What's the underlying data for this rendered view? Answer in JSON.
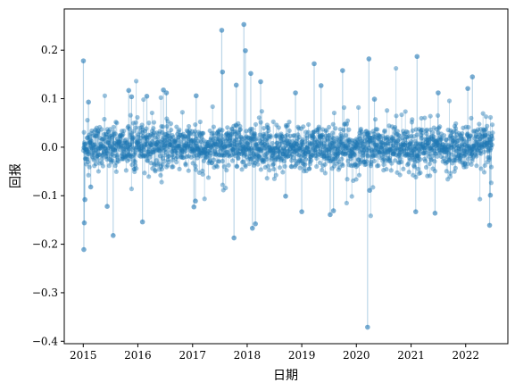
{
  "chart_data": {
    "type": "scatter",
    "style": "stem scatter (vertical lines from 0 to each point)",
    "xlabel": "日期",
    "ylabel": "回报",
    "xlim": [
      "2014-08-27",
      "2022-10-10"
    ],
    "ylim": [
      -0.405,
      0.285
    ],
    "x_ticks": [
      "2015",
      "2016",
      "2017",
      "2018",
      "2019",
      "2020",
      "2021",
      "2022"
    ],
    "y_ticks": [
      "−0.4",
      "−0.3",
      "−0.2",
      "−0.1",
      "0.0",
      "0.1",
      "0.2"
    ],
    "y_tick_values": [
      -0.4,
      -0.3,
      -0.2,
      -0.1,
      0.0,
      0.1,
      0.2
    ],
    "grid": false,
    "legend": "none",
    "color": "#1f77b4",
    "marker_opacity": 0.55,
    "stem_opacity": 0.25,
    "series": [
      {
        "values": [
          {
            "x": "2015-01-02",
            "y": 0.178
          },
          {
            "x": "2015-01-05",
            "y": -0.211
          },
          {
            "x": "2015-01-08",
            "y": -0.156
          },
          {
            "x": "2015-01-12",
            "y": -0.108
          },
          {
            "x": "2015-02-05",
            "y": 0.093
          },
          {
            "x": "2015-02-20",
            "y": -0.082
          },
          {
            "x": "2015-06-10",
            "y": -0.122
          },
          {
            "x": "2015-07-20",
            "y": -0.182
          },
          {
            "x": "2015-11-01",
            "y": 0.117
          },
          {
            "x": "2015-11-20",
            "y": 0.104
          },
          {
            "x": "2016-02-01",
            "y": -0.154
          },
          {
            "x": "2016-03-01",
            "y": 0.105
          },
          {
            "x": "2016-06-20",
            "y": 0.118
          },
          {
            "x": "2016-07-10",
            "y": 0.112
          },
          {
            "x": "2017-01-10",
            "y": -0.123
          },
          {
            "x": "2017-01-20",
            "y": -0.111
          },
          {
            "x": "2017-01-25",
            "y": 0.106
          },
          {
            "x": "2017-07-15",
            "y": 0.241
          },
          {
            "x": "2017-07-20",
            "y": 0.155
          },
          {
            "x": "2017-10-05",
            "y": -0.187
          },
          {
            "x": "2017-10-20",
            "y": 0.128
          },
          {
            "x": "2017-12-10",
            "y": 0.253
          },
          {
            "x": "2017-12-20",
            "y": 0.199
          },
          {
            "x": "2018-01-25",
            "y": 0.152
          },
          {
            "x": "2018-02-05",
            "y": -0.167
          },
          {
            "x": "2018-02-25",
            "y": -0.158
          },
          {
            "x": "2018-04-01",
            "y": 0.135
          },
          {
            "x": "2018-09-15",
            "y": -0.101
          },
          {
            "x": "2018-11-20",
            "y": 0.112
          },
          {
            "x": "2019-01-01",
            "y": -0.133
          },
          {
            "x": "2019-03-25",
            "y": 0.172
          },
          {
            "x": "2019-05-10",
            "y": 0.127
          },
          {
            "x": "2019-07-10",
            "y": -0.139
          },
          {
            "x": "2019-08-01",
            "y": -0.131
          },
          {
            "x": "2019-10-01",
            "y": 0.158
          },
          {
            "x": "2020-03-16",
            "y": -0.371
          },
          {
            "x": "2020-03-25",
            "y": 0.182
          },
          {
            "x": "2020-03-30",
            "y": -0.089
          },
          {
            "x": "2020-05-01",
            "y": 0.099
          },
          {
            "x": "2021-02-10",
            "y": 0.187
          },
          {
            "x": "2021-02-01",
            "y": -0.133
          },
          {
            "x": "2021-06-10",
            "y": -0.136
          },
          {
            "x": "2021-07-01",
            "y": 0.112
          },
          {
            "x": "2022-01-15",
            "y": 0.121
          },
          {
            "x": "2022-02-15",
            "y": 0.145
          },
          {
            "x": "2022-06-10",
            "y": -0.161
          },
          {
            "x": "2022-06-15",
            "y": -0.099
          }
        ]
      }
    ]
  }
}
